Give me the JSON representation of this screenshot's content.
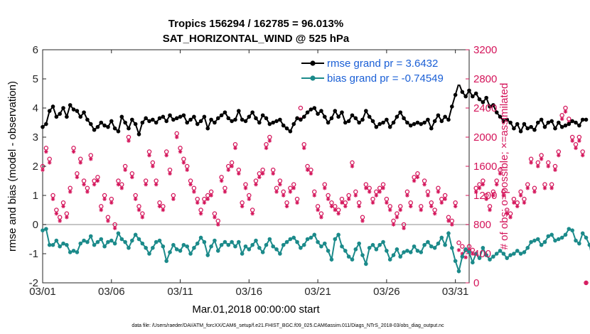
{
  "chart_data": {
    "type": "line",
    "title": "Tropics 156294 / 162785 = 96.013%",
    "subtitle": "SAT_HORIZONTAL_WIND @ 525 hPa",
    "xlabel": "Mar.01,2018 00:00:00 start",
    "ylabel": "rmse and bias (model - observation)",
    "ylabel_right": "# of obs: o=possible; ×=assimilated",
    "footnote": "data file: /Users/raeder/DAI/ATM_forcXX/CAM6_setup/f.e21.FHIST_BGC.f09_025.CAM6assim.011/Diags_NTrS_2018-03/obs_diag_output.nc",
    "xlim": [
      0,
      31
    ],
    "ylim": [
      -2,
      6
    ],
    "ylim_right": [
      0,
      3200
    ],
    "x_ticks": [
      {
        "value": 0,
        "label": "03/01"
      },
      {
        "value": 5,
        "label": "03/06"
      },
      {
        "value": 10,
        "label": "03/11"
      },
      {
        "value": 15,
        "label": "03/16"
      },
      {
        "value": 20,
        "label": "03/21"
      },
      {
        "value": 25,
        "label": "03/26"
      },
      {
        "value": 30,
        "label": "03/31"
      }
    ],
    "y_ticks": [
      "-2",
      "-1",
      "0",
      "1",
      "2",
      "3",
      "4",
      "5",
      "6"
    ],
    "y_ticks_right": [
      "0",
      "400",
      "800",
      "1200",
      "1600",
      "2000",
      "2400",
      "2800",
      "3200"
    ],
    "zero_line": 0,
    "step_days": 0.25,
    "legend": [
      {
        "label": "rmse grand pr = 3.6432",
        "color": "#000000"
      },
      {
        "label": "bias grand pr = -0.74549",
        "color": "#1b8a8a"
      }
    ],
    "series": [
      {
        "name": "rmse",
        "color": "#000000",
        "values": [
          3.35,
          3.45,
          3.9,
          4.05,
          3.7,
          3.8,
          4.0,
          3.7,
          4.1,
          3.95,
          3.9,
          3.7,
          3.85,
          3.6,
          3.45,
          3.25,
          3.35,
          3.5,
          3.4,
          3.35,
          3.55,
          3.3,
          3.2,
          3.7,
          3.5,
          3.3,
          3.6,
          3.45,
          3.1,
          3.5,
          3.65,
          3.55,
          3.6,
          3.5,
          3.65,
          3.7,
          3.55,
          3.75,
          3.6,
          3.65,
          3.7,
          3.75,
          3.5,
          3.6,
          3.7,
          3.45,
          3.55,
          3.7,
          3.3,
          3.6,
          3.5,
          3.65,
          3.75,
          3.85,
          3.65,
          3.55,
          3.6,
          3.9,
          3.6,
          3.55,
          3.7,
          3.85,
          3.65,
          3.5,
          3.75,
          3.65,
          3.45,
          3.5,
          3.55,
          3.6,
          3.4,
          3.3,
          3.2,
          3.45,
          3.65,
          3.6,
          3.7,
          3.85,
          3.95,
          4.0,
          3.8,
          3.9,
          3.7,
          3.5,
          3.65,
          3.9,
          3.7,
          3.85,
          3.5,
          3.55,
          3.75,
          3.65,
          3.5,
          3.6,
          3.9,
          3.7,
          3.55,
          3.35,
          3.45,
          3.5,
          3.6,
          3.35,
          3.5,
          3.7,
          3.85,
          3.65,
          3.5,
          3.4,
          3.45,
          3.5,
          3.45,
          3.5,
          3.6,
          3.3,
          3.55,
          3.75,
          3.55,
          3.7,
          3.6,
          4.05,
          4.45,
          4.85,
          4.55,
          4.4,
          4.6,
          4.4,
          4.5,
          4.3,
          4.2,
          4.35,
          4.05,
          4.1,
          3.85,
          3.7,
          3.55,
          3.6,
          3.5,
          3.3,
          3.45,
          3.2,
          3.45,
          3.3,
          3.35,
          3.25,
          3.5,
          3.6,
          3.35,
          3.5,
          3.55,
          3.3,
          3.5,
          3.35,
          3.4,
          3.45,
          3.55,
          3.5,
          3.4,
          3.6,
          3.6
        ]
      },
      {
        "name": "bias",
        "color": "#1b8a8a",
        "values": [
          -0.2,
          -0.15,
          -0.7,
          -0.7,
          -0.55,
          -0.75,
          -0.65,
          -0.7,
          -0.95,
          -0.9,
          -0.95,
          -0.65,
          -0.55,
          -0.6,
          -0.4,
          -0.7,
          -0.6,
          -0.5,
          -0.75,
          -0.6,
          -0.55,
          -0.65,
          -0.3,
          -0.5,
          -0.6,
          -0.8,
          -0.55,
          -0.35,
          -0.5,
          -0.65,
          -0.8,
          -1.0,
          -0.8,
          -0.6,
          -0.55,
          -0.75,
          -1.25,
          -0.95,
          -0.7,
          -0.85,
          -0.9,
          -0.7,
          -0.75,
          -1.0,
          -0.8,
          -0.65,
          -0.45,
          -0.6,
          -1.05,
          -0.75,
          -0.55,
          -0.9,
          -0.7,
          -0.6,
          -0.7,
          -0.6,
          -0.75,
          -0.6,
          -1.0,
          -0.75,
          -0.85,
          -0.7,
          -0.55,
          -0.8,
          -0.95,
          -0.7,
          -0.5,
          -0.75,
          -0.85,
          -1.0,
          -0.7,
          -0.6,
          -0.5,
          -0.45,
          -0.6,
          -0.8,
          -0.7,
          -0.5,
          -0.45,
          -0.35,
          -0.6,
          -0.75,
          -0.65,
          -0.9,
          -1.2,
          -0.5,
          -0.35,
          -0.75,
          -0.9,
          -1.1,
          -1.2,
          -0.85,
          -0.65,
          -1.05,
          -1.35,
          -0.8,
          -0.7,
          -0.85,
          -0.7,
          -0.6,
          -0.9,
          -1.2,
          -1.05,
          -0.85,
          -1.1,
          -0.95,
          -0.9,
          -0.95,
          -0.75,
          -0.9,
          -0.95,
          -0.7,
          -0.6,
          -0.75,
          -0.8,
          -0.65,
          -0.45,
          -0.7,
          -0.3,
          -0.8,
          -1.25,
          -1.6,
          -1.1,
          -0.85,
          -0.95,
          -1.3,
          -1.0,
          -1.15,
          -0.8,
          -1.05,
          -1.2,
          -1.1,
          -1.0,
          -0.9,
          -1.0,
          -1.15,
          -1.05,
          -1.0,
          -0.9,
          -1.0,
          -0.95,
          -0.8,
          -0.6,
          -0.55,
          -0.5,
          -0.7,
          -0.6,
          -0.4,
          -0.35,
          -0.55,
          -0.5,
          -0.45,
          -0.35,
          -0.15,
          -0.2,
          -0.55,
          -0.65,
          -0.3,
          -0.45,
          -0.7,
          -1.3
        ]
      },
      {
        "name": "possible obs",
        "color": "#d4145a",
        "marker": "o",
        "values": [
          1600,
          1850,
          1700,
          1200,
          1000,
          900,
          1100,
          950,
          1300,
          1850,
          1500,
          1700,
          1400,
          1300,
          1750,
          1400,
          1450,
          1050,
          1200,
          900,
          1150,
          800,
          1400,
          1350,
          1600,
          2000,
          1500,
          1200,
          1050,
          950,
          1400,
          1800,
          1650,
          1400,
          1100,
          1050,
          1800,
          1550,
          1200,
          2050,
          1850,
          1700,
          1600,
          1400,
          1300,
          1150,
          1000,
          1150,
          1200,
          1250,
          950,
          850,
          1450,
          1300,
          1600,
          1650,
          1900,
          1550,
          1100,
          1350,
          1200,
          1000,
          1400,
          1500,
          1550,
          1900,
          2000,
          1550,
          1300,
          1400,
          1250,
          1100,
          1300,
          1350,
          1150,
          2400,
          1900,
          1600,
          1550,
          1250,
          1050,
          950,
          1350,
          1200,
          1100,
          1050,
          1000,
          1150,
          1100,
          1200,
          1650,
          1250,
          1100,
          900,
          1350,
          1300,
          1150,
          1250,
          1300,
          1350,
          1150,
          1050,
          850,
          950,
          1050,
          800,
          1250,
          1100,
          1450,
          1500,
          1050,
          1400,
          1250,
          1100,
          1000,
          1300,
          1150,
          1200,
          900,
          850,
          1100,
          550,
          500,
          450,
          500,
          450,
          1300,
          1350,
          1400,
          1200,
          1050,
          1250,
          1400,
          1550,
          1250,
          1000,
          950,
          1150,
          1100,
          1250,
          1150,
          1350,
          1700,
          1300,
          1650,
          1750,
          1350,
          1650,
          1350,
          1600,
          1800,
          2300,
          2400,
          2250,
          2000,
          1900,
          2000,
          1800,
          0
        ]
      },
      {
        "name": "assimilated obs",
        "color": "#d4145a",
        "marker": "*",
        "values": [
          1550,
          1800,
          1650,
          1150,
          950,
          850,
          1050,
          900,
          1250,
          1800,
          1450,
          1650,
          1350,
          1250,
          1700,
          1350,
          1400,
          1000,
          1150,
          850,
          1100,
          750,
          1350,
          1300,
          1550,
          1950,
          1450,
          1150,
          1000,
          900,
          1350,
          1750,
          1600,
          1350,
          1050,
          1000,
          1750,
          1500,
          1150,
          2000,
          1800,
          1650,
          1550,
          1350,
          1250,
          1100,
          950,
          1100,
          1150,
          1200,
          900,
          800,
          1400,
          1250,
          1550,
          1600,
          1850,
          1500,
          1050,
          1300,
          1150,
          950,
          1350,
          1450,
          1500,
          1850,
          1950,
          1500,
          1250,
          1350,
          1200,
          1050,
          1250,
          1300,
          1100,
          2250,
          1850,
          1550,
          1500,
          1200,
          1000,
          900,
          1300,
          1150,
          1050,
          1000,
          950,
          1100,
          1050,
          1150,
          1600,
          1200,
          1050,
          850,
          1300,
          1250,
          1100,
          1200,
          1250,
          1300,
          1100,
          1000,
          800,
          900,
          1000,
          750,
          1200,
          1050,
          1400,
          1450,
          1000,
          1350,
          1200,
          1050,
          950,
          1250,
          1100,
          1150,
          850,
          800,
          1050,
          450,
          400,
          350,
          450,
          400,
          1250,
          1300,
          1350,
          1150,
          1000,
          1200,
          1350,
          1500,
          1200,
          950,
          900,
          1100,
          1050,
          1200,
          1100,
          1300,
          1650,
          1250,
          1600,
          1700,
          1300,
          1600,
          1300,
          1550,
          1750,
          2250,
          2350,
          2200,
          1950,
          1850,
          1950,
          1750,
          0
        ]
      }
    ]
  }
}
